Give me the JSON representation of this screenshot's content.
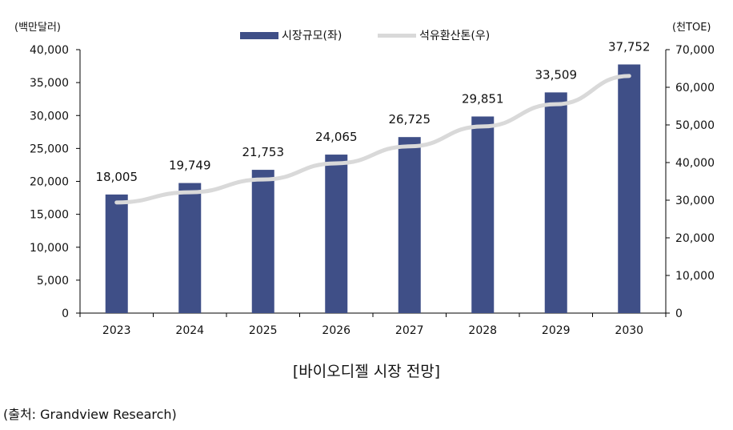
{
  "chart_data": {
    "type": "bar",
    "title": "[바이오디젤 시장 전망]",
    "source": "(출처: Grandview Research)",
    "categories": [
      "2023",
      "2024",
      "2025",
      "2026",
      "2027",
      "2028",
      "2029",
      "2030"
    ],
    "left_axis": {
      "label": "(백만달러)",
      "ylim": [
        0,
        40000
      ],
      "ticks": [
        "0",
        "5,000",
        "10,000",
        "15,000",
        "20,000",
        "25,000",
        "30,000",
        "35,000",
        "40,000"
      ]
    },
    "right_axis": {
      "label": "(천TOE)",
      "ylim": [
        0,
        70000
      ],
      "ticks": [
        "0",
        "10,000",
        "20,000",
        "30,000",
        "40,000",
        "50,000",
        "60,000",
        "70,000"
      ]
    },
    "series": [
      {
        "name": "시장규모(좌)",
        "type": "bar",
        "axis": "left",
        "color": "#3f4f87",
        "values": [
          18005,
          19749,
          21753,
          24065,
          26725,
          29851,
          33509,
          37752
        ],
        "labels": [
          "18,005",
          "19,749",
          "21,753",
          "24,065",
          "26,725",
          "29,851",
          "33,509",
          "37,752"
        ]
      },
      {
        "name": "석유환산톤(우)",
        "type": "line",
        "axis": "right",
        "color": "#d9d9d9",
        "values": [
          29400,
          32100,
          35500,
          39800,
          44300,
          49600,
          55500,
          63000
        ]
      }
    ],
    "legend": "top-center",
    "grid": false
  }
}
